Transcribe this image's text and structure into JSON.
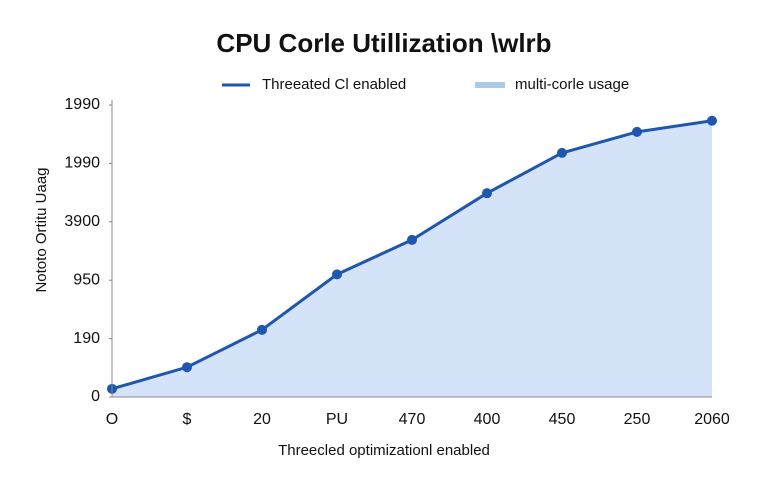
{
  "chart_data": {
    "type": "line",
    "title": "CPU Corle Utillization \\wlrb",
    "x_label": "Threecled optimizationl enabled",
    "y_label": "Nototo Ortitu Uaag",
    "categories": [
      "O",
      "$",
      "20",
      "PU",
      "470",
      "400",
      "450",
      "250",
      "2060"
    ],
    "series": [
      {
        "name": "Threeated Cl enabled",
        "color": "#1f56b0",
        "values": [
          0.14,
          0.51,
          1.15,
          2.1,
          2.69,
          3.49,
          4.18,
          4.54,
          4.73
        ]
      }
    ],
    "area": {
      "name": "multi-corle usage",
      "color": "#d4e3f7",
      "legend_color": "#a9cbe8"
    },
    "ylim": [
      0,
      5
    ],
    "yticks": [
      0,
      {
        "value": 1,
        "label": "190"
      },
      {
        "value": 2,
        "label": "950"
      },
      {
        "value": 3,
        "label": "3900"
      },
      {
        "value": 4,
        "label": "1990"
      },
      {
        "value": 5,
        "label": "1990"
      }
    ],
    "grid": false
  }
}
